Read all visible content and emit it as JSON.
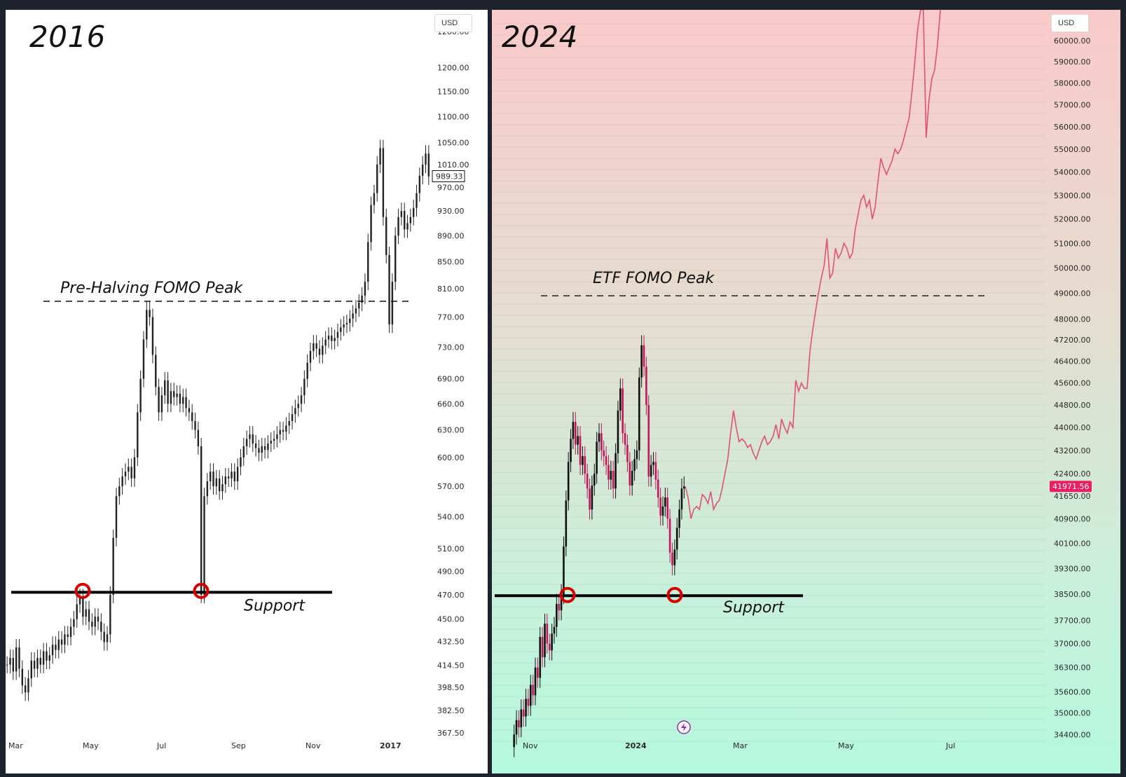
{
  "chart_data": [
    {
      "type": "candlestick",
      "title": "2016",
      "currency": "USD",
      "y_ticks": [
        "1280.00",
        "1200.00",
        "1150.00",
        "1100.00",
        "1050.00",
        "1010.00",
        "970.00",
        "930.00",
        "890.00",
        "850.00",
        "810.00",
        "770.00",
        "730.00",
        "690.00",
        "660.00",
        "630.00",
        "600.00",
        "570.00",
        "540.00",
        "510.00",
        "490.00",
        "470.00",
        "450.00",
        "432.50",
        "414.50",
        "398.50",
        "382.50",
        "367.50"
      ],
      "x_ticks": [
        "Mar",
        "May",
        "Jul",
        "Sep",
        "Nov",
        "2017"
      ],
      "last_price": "989.33",
      "ylim": [
        355,
        1330
      ],
      "series": [
        {
          "values": [
            415,
            420,
            410,
            428,
            412,
            400,
            395,
            405,
            418,
            412,
            420,
            415,
            425,
            418,
            422,
            430,
            426,
            434,
            430,
            438,
            436,
            444,
            450,
            462,
            468,
            452,
            458,
            448,
            444,
            452,
            448,
            440,
            432,
            438,
            470,
            520,
            560,
            570,
            580,
            585,
            590,
            578,
            600,
            650,
            690,
            740,
            780,
            770,
            720,
            680,
            650,
            670,
            688,
            660,
            675,
            668,
            672,
            660,
            668,
            655,
            650,
            640,
            630,
            612,
            470,
            560,
            575,
            585,
            570,
            578,
            565,
            572,
            580,
            578,
            585,
            575,
            590,
            600,
            612,
            620,
            625,
            615,
            610,
            605,
            612,
            608,
            615,
            618,
            620,
            625,
            630,
            628,
            635,
            640,
            648,
            655,
            660,
            670,
            690,
            710,
            725,
            735,
            728,
            720,
            732,
            740,
            745,
            738,
            742,
            750,
            756,
            760,
            762,
            768,
            775,
            782,
            790,
            800,
            820,
            880,
            940,
            960,
            1010,
            1040,
            920,
            860,
            760,
            820,
            890,
            920,
            930,
            900,
            910,
            920,
            935,
            960,
            990,
            1010,
            1030,
            989
          ]
        }
      ],
      "annotations": [
        {
          "type": "hline",
          "style": "dashed",
          "value": 792,
          "label": "Pre-Halving FOMO Peak"
        },
        {
          "type": "hline",
          "style": "solid",
          "value": 472,
          "label": "Support"
        }
      ]
    },
    {
      "type": "candlestick+line",
      "title": "2024",
      "currency": "USD",
      "y_ticks": [
        "60000.00",
        "59000.00",
        "58000.00",
        "57000.00",
        "56000.00",
        "55000.00",
        "54000.00",
        "53000.00",
        "52000.00",
        "51000.00",
        "50000.00",
        "49000.00",
        "48000.00",
        "47200.00",
        "46400.00",
        "45600.00",
        "44800.00",
        "44000.00",
        "43200.00",
        "42400.00",
        "41650.00",
        "40900.00",
        "40100.00",
        "39300.00",
        "38500.00",
        "37700.00",
        "37000.00",
        "36300.00",
        "35600.00",
        "35000.00",
        "34400.00"
      ],
      "x_ticks": [
        "Nov",
        "2024",
        "Mar",
        "May",
        "Jul"
      ],
      "last_price": "41971.56",
      "ylim": [
        34100,
        61500
      ],
      "series": [
        {
          "values": [
            34400,
            34800,
            34600,
            35100,
            34900,
            35400,
            35200,
            35800,
            35500,
            36300,
            36000,
            37200,
            36600,
            37600,
            37000,
            36800,
            37300,
            37500,
            38200,
            38000,
            38500,
            40000,
            41500,
            42800,
            43600,
            44200,
            43400,
            43700,
            42700,
            43000,
            42400,
            41900,
            41200,
            42000,
            42400,
            43500,
            43800,
            43200,
            43000,
            42700,
            42200,
            42500,
            41900,
            43100,
            44600,
            45400,
            43800,
            43400,
            42800,
            42000,
            42500,
            42900,
            43200,
            45800,
            47000,
            46200,
            44800,
            42300,
            42700,
            42800,
            42200,
            41600,
            41000,
            41300,
            41600,
            40900,
            39800,
            39400,
            39900,
            40600,
            41200,
            41900,
            41972
          ]
        },
        {
          "values": [
            41972,
            41600,
            40900,
            41200,
            41300,
            41200,
            41700,
            41600,
            41400,
            41800,
            41200,
            41400,
            41500,
            41900,
            42400,
            42900,
            43800,
            44600,
            44000,
            43500,
            43600,
            43500,
            43300,
            43400,
            43100,
            42900,
            43200,
            43500,
            43700,
            43400,
            43500,
            43700,
            44100,
            43600,
            44300,
            44000,
            43800,
            44200,
            44000,
            45700,
            45300,
            45600,
            45400,
            45400,
            46800,
            47600,
            48300,
            49000,
            49600,
            50100,
            51200,
            49600,
            49800,
            50800,
            50400,
            50600,
            51000,
            50800,
            50400,
            50600,
            51600,
            52200,
            52800,
            53000,
            52500,
            52800,
            52000,
            52500,
            53600,
            54600,
            54200,
            53900,
            54200,
            54500,
            55000,
            54800,
            55000,
            55400,
            55900,
            56400,
            57600,
            59000,
            60500,
            61500,
            61500,
            55500,
            57200,
            58200,
            58600,
            59800,
            61500
          ]
        }
      ],
      "annotations": [
        {
          "type": "hline",
          "style": "dashed",
          "value": 48900,
          "label": "ETF FOMO Peak"
        },
        {
          "type": "hline",
          "style": "solid",
          "value": 38450,
          "label": "Support"
        }
      ]
    }
  ]
}
